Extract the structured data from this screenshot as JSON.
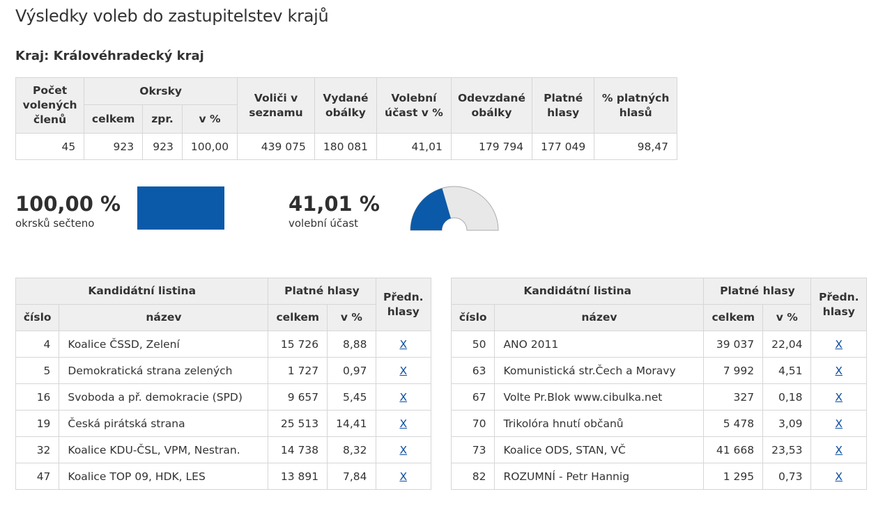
{
  "title": "Výsledky voleb do zastupitelstev krajů",
  "region": "Kraj: Královéhradecký kraj",
  "summary": {
    "headers": {
      "members": "Počet volených členů",
      "districts": "Okrsky",
      "districts_total": "celkem",
      "districts_done": "zpr.",
      "districts_pct": "v %",
      "voters": "Voliči v seznamu",
      "envelopes_issued": "Vydané obálky",
      "turnout": "Volební účast v %",
      "envelopes_returned": "Odevzdané obálky",
      "valid_votes": "Platné hlasy",
      "valid_pct": "% platných hlasů"
    },
    "values": {
      "members": "45",
      "districts_total": "923",
      "districts_done": "923",
      "districts_pct": "100,00",
      "voters": "439 075",
      "envelopes_issued": "180 081",
      "turnout": "41,01",
      "envelopes_returned": "179 794",
      "valid_votes": "177 049",
      "valid_pct": "98,47"
    }
  },
  "counted": {
    "value": "100,00 %",
    "label": "okrsků sečteno",
    "fraction": 1.0,
    "color": "#0b5aaa"
  },
  "turnout_gauge": {
    "value": "41,01 %",
    "label": "volební účast",
    "fraction": 0.4101,
    "fill_color": "#0b5aaa",
    "bg_color": "#e8e8e8"
  },
  "parties_table_headers": {
    "list": "Kandidátní listina",
    "votes": "Platné hlasy",
    "preferential": "Předn. hlasy",
    "number": "číslo",
    "name": "název",
    "total": "celkem",
    "pct": "v %"
  },
  "parties_left": [
    {
      "number": "4",
      "name": "Koalice ČSSD, Zelení",
      "votes": "15 726",
      "pct": "8,88",
      "link": "X"
    },
    {
      "number": "5",
      "name": "Demokratická strana zelených",
      "votes": "1 727",
      "pct": "0,97",
      "link": "X"
    },
    {
      "number": "16",
      "name": "Svoboda a př. demokracie (SPD)",
      "votes": "9 657",
      "pct": "5,45",
      "link": "X"
    },
    {
      "number": "19",
      "name": "Česká pirátská strana",
      "votes": "25 513",
      "pct": "14,41",
      "link": "X"
    },
    {
      "number": "32",
      "name": "Koalice KDU-ČSL, VPM, Nestran.",
      "votes": "14 738",
      "pct": "8,32",
      "link": "X"
    },
    {
      "number": "47",
      "name": "Koalice TOP 09, HDK, LES",
      "votes": "13 891",
      "pct": "7,84",
      "link": "X"
    }
  ],
  "parties_right": [
    {
      "number": "50",
      "name": "ANO 2011",
      "votes": "39 037",
      "pct": "22,04",
      "link": "X"
    },
    {
      "number": "63",
      "name": "Komunistická str.Čech a Moravy",
      "votes": "7 992",
      "pct": "4,51",
      "link": "X"
    },
    {
      "number": "67",
      "name": "Volte Pr.Blok www.cibulka.net",
      "votes": "327",
      "pct": "0,18",
      "link": "X"
    },
    {
      "number": "70",
      "name": "Trikolóra hnutí občanů",
      "votes": "5 478",
      "pct": "3,09",
      "link": "X"
    },
    {
      "number": "73",
      "name": "Koalice ODS, STAN, VČ",
      "votes": "41 668",
      "pct": "23,53",
      "link": "X"
    },
    {
      "number": "82",
      "name": "ROZUMNÍ - Petr Hannig",
      "votes": "1 295",
      "pct": "0,73",
      "link": "X"
    }
  ]
}
